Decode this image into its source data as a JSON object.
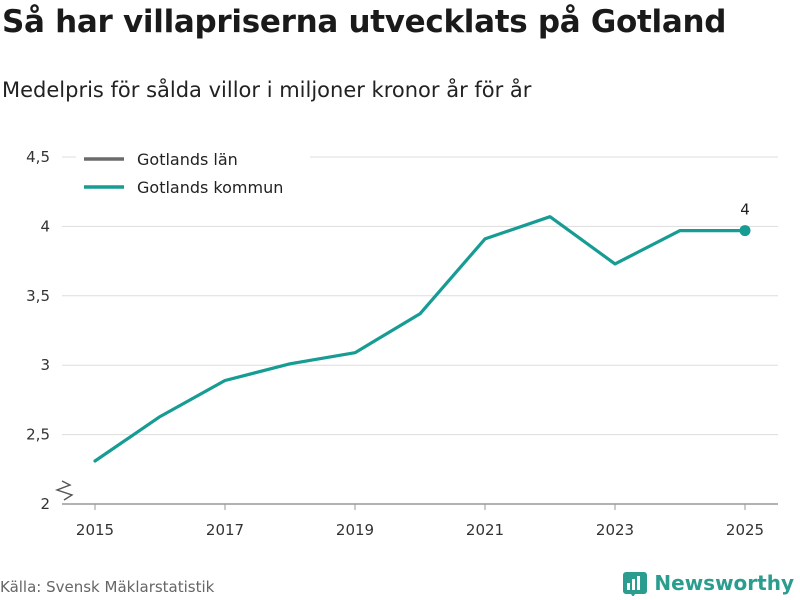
{
  "title": "Så har villapriserna utvecklats på Gotland",
  "subtitle": "Medelpris för sålda villor i miljoner kronor år för år",
  "source": "Källa: Svensk Mäklarstatistik",
  "brand": "Newsworthy",
  "colors": {
    "series_lan": "#6b6b6b",
    "series_kommun": "#179c93",
    "grid": "#dddddd",
    "brand": "#2a9d8f"
  },
  "chart_data": {
    "type": "line",
    "title": "Så har villapriserna utvecklats på Gotland",
    "ylabel": "",
    "xlabel": "",
    "ylim": [
      2,
      4.5
    ],
    "yticks": [
      2,
      2.5,
      3,
      3.5,
      4,
      4.5
    ],
    "ytick_labels": [
      "2",
      "2,5",
      "3",
      "3,5",
      "4",
      "4,5"
    ],
    "xticks": [
      2015,
      2017,
      2019,
      2021,
      2023,
      2025
    ],
    "xtick_labels": [
      "2015",
      "2017",
      "2019",
      "2021",
      "2023",
      "2025"
    ],
    "xlim": [
      2015,
      2025
    ],
    "legend_position": "top-left",
    "series": [
      {
        "name": "Gotlands län",
        "x": [],
        "values": []
      },
      {
        "name": "Gotlands kommun",
        "x": [
          2015,
          2016,
          2017,
          2018,
          2019,
          2020,
          2021,
          2022,
          2023,
          2024,
          2025
        ],
        "values": [
          2.31,
          2.63,
          2.89,
          3.01,
          3.09,
          3.37,
          3.91,
          4.07,
          3.73,
          3.97,
          3.97
        ]
      }
    ],
    "end_label": "4"
  }
}
